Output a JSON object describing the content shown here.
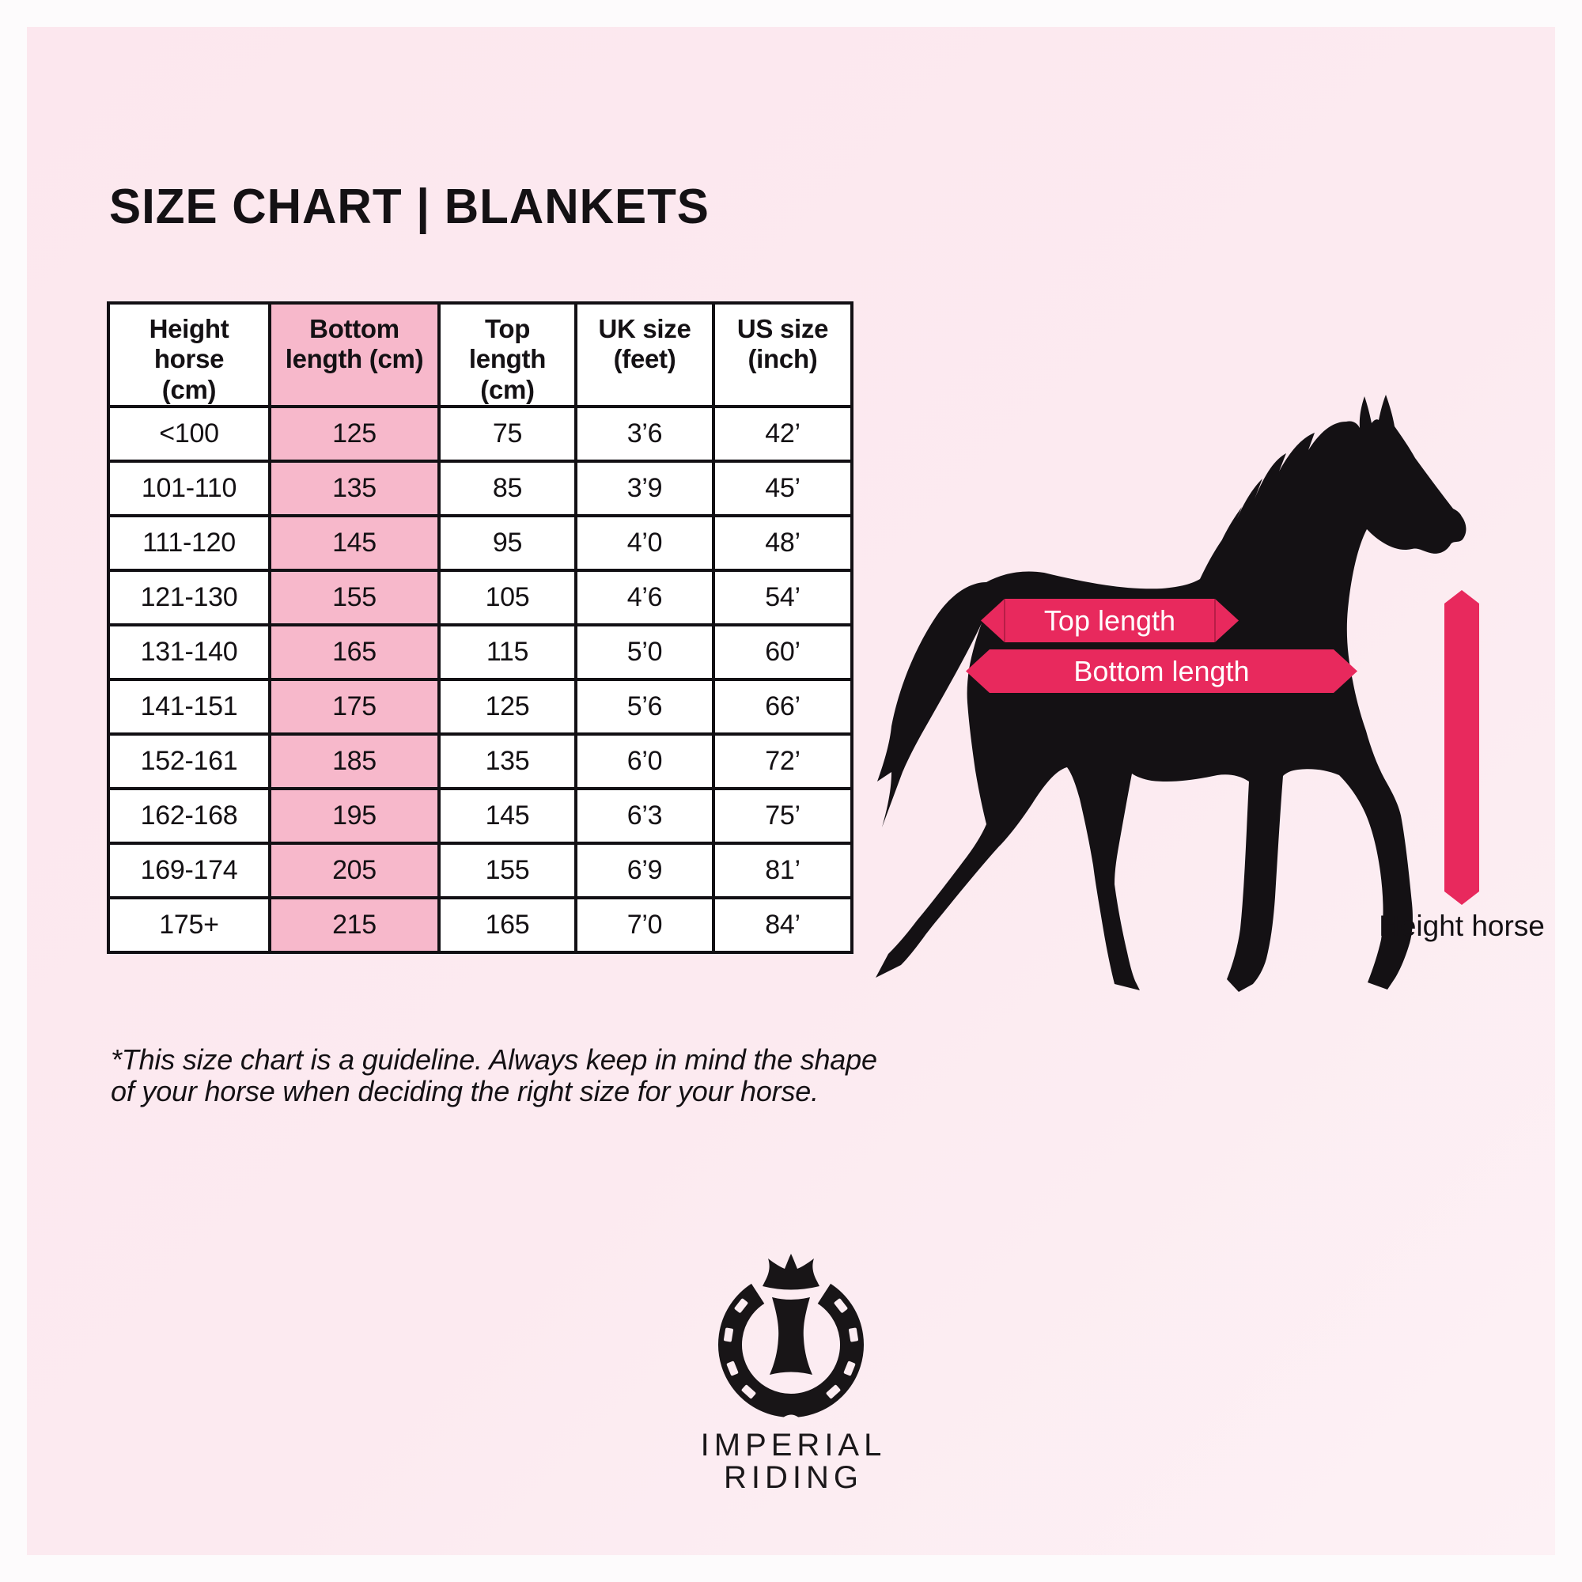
{
  "page": {
    "title": "SIZE CHART | BLANKETS"
  },
  "chart_data": {
    "type": "table",
    "title": "SIZE CHART | BLANKETS",
    "columns": [
      "Height horse (cm)",
      "Bottom length (cm)",
      "Top length (cm)",
      "UK size (feet)",
      "US size (inch)"
    ],
    "highlighted_column": "Bottom length (cm)",
    "rows": [
      [
        "<100",
        "125",
        "75",
        "3’6",
        "42’"
      ],
      [
        "101-110",
        "135",
        "85",
        "3’9",
        "45’"
      ],
      [
        "111-120",
        "145",
        "95",
        "4’0",
        "48’"
      ],
      [
        "121-130",
        "155",
        "105",
        "4’6",
        "54’"
      ],
      [
        "131-140",
        "165",
        "115",
        "5’0",
        "60’"
      ],
      [
        "141-151",
        "175",
        "125",
        "5’6",
        "66’"
      ],
      [
        "152-161",
        "185",
        "135",
        "6’0",
        "72’"
      ],
      [
        "162-168",
        "195",
        "145",
        "6’3",
        "75’"
      ],
      [
        "169-174",
        "205",
        "155",
        "6’9",
        "81’"
      ],
      [
        "175+",
        "215",
        "165",
        "7’0",
        "84’"
      ]
    ]
  },
  "table": {
    "header_lines": [
      [
        "Height",
        "horse",
        "(cm)"
      ],
      [
        "Bottom",
        "length (cm)"
      ],
      [
        "Top",
        "length",
        "(cm)"
      ],
      [
        "UK size",
        "(feet)"
      ],
      [
        "US size",
        "(inch)"
      ]
    ],
    "highlight_col_index": 1
  },
  "diagram": {
    "top_arrow_label": "Top length",
    "bottom_arrow_label": "Bottom length",
    "height_label": "Height horse"
  },
  "footnote": {
    "line1": "*This size chart is a guideline. Always keep in mind the shape",
    "line2": "of your horse when deciding the right size for your horse."
  },
  "logo": {
    "line1": "IMPERIAL",
    "line2": "RIDING"
  },
  "colors": {
    "background": "#fce9ef",
    "margin": "#fdfbfc",
    "accent_pink": "#e8295d",
    "highlight_pink": "#f7b8cb",
    "ink": "#141114",
    "white": "#ffffff"
  }
}
